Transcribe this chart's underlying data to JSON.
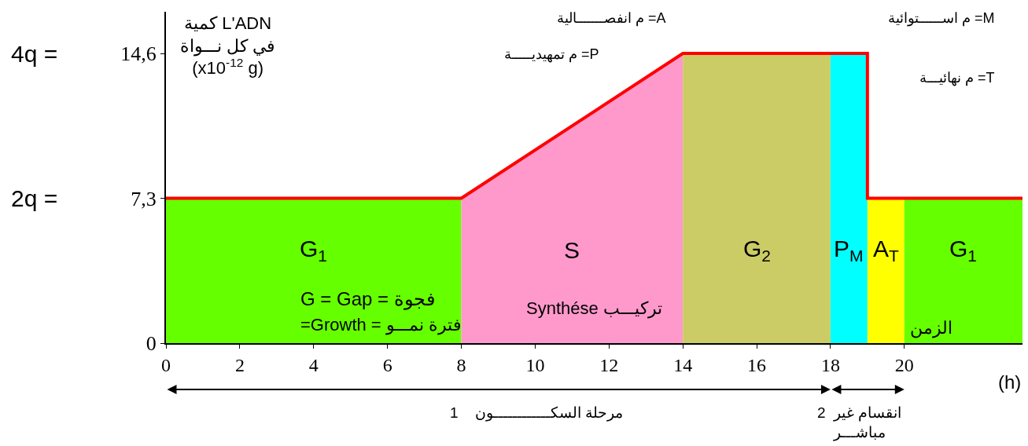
{
  "chart_data": {
    "type": "area",
    "xlabel": "(h)",
    "ylabel": "كمية L'ADN\nفي كل نـــواة\n(x10$^{-12}$ g)",
    "xlim": [
      0,
      23.2
    ],
    "ylim": [
      0,
      16.7
    ],
    "xticks": [
      0,
      2,
      4,
      6,
      8,
      10,
      12,
      14,
      16,
      18,
      20
    ],
    "yticks": [
      0,
      {
        "value": 7.3,
        "label": "7,3"
      },
      {
        "value": 14.6,
        "label": "14,6"
      }
    ],
    "series": [
      {
        "name": "G$_{1}$",
        "color": "#66ff00",
        "x": [
          0,
          8
        ],
        "values": [
          7.3,
          7.3
        ]
      },
      {
        "name": "S",
        "color": "#ff99cc",
        "x": [
          8,
          14
        ],
        "values": [
          7.3,
          14.6
        ]
      },
      {
        "name": "G$_{2}$",
        "color": "#cccc66",
        "x": [
          14,
          18
        ],
        "values": [
          14.6,
          14.6
        ]
      },
      {
        "name": "P$_{M}$",
        "color": "#00ffff",
        "x": [
          18,
          19
        ],
        "values": [
          14.6,
          14.6
        ]
      },
      {
        "name": "A$_{T}$",
        "color": "#ffff00",
        "x": [
          19,
          20
        ],
        "values": [
          7.3,
          7.3
        ]
      },
      {
        "name": "G$_{1}$",
        "color": "#66ff00",
        "x": [
          20,
          23.2
        ],
        "values": [
          7.3,
          7.3
        ]
      },
      {
        "type": "line",
        "color": "#ff0000",
        "x": [
          0,
          8,
          14,
          19,
          19,
          23.2
        ],
        "values": [
          7.3,
          7.3,
          14.6,
          14.6,
          7.3,
          7.3
        ]
      }
    ],
    "annotations": [
      "م انفصـــــــالية =A",
      "م اســــــتوائية =M",
      "م تمهيديـــــة =P",
      "م نهائيـــة =T",
      "G = Gap = فجوة",
      "=Growth = فترة نمـــو",
      "Synthése تركيـــب",
      "الزمن",
      "2q =",
      "4q =",
      "1    مرحلة السكــــــــــــون",
      "2  انقسام غير\nمباشـــر"
    ]
  }
}
